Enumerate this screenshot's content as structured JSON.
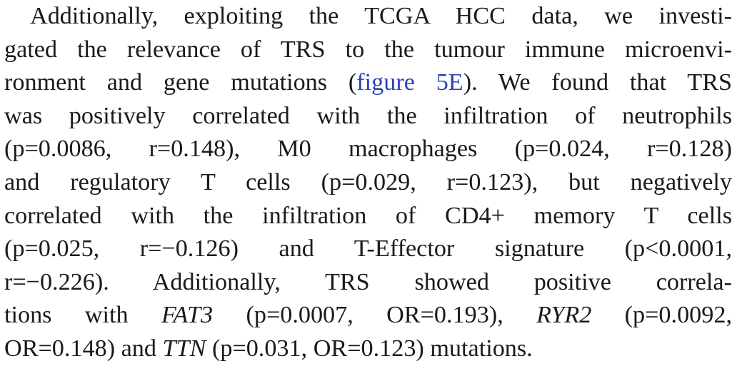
{
  "paragraph": {
    "line_01": "Additionally, exploiting the TCGA HCC data, we investi-",
    "line_02": "gated the relevance of TRS to the tumour immune microenvi-",
    "line_03_before": "ronment and gene mutations (",
    "line_03_link": "figure 5E",
    "line_03_after": "). We found that TRS",
    "line_04": "was positively correlated with the infiltration of neutrophils",
    "line_05": "(p=0.0086, r=0.148), M0 macrophages (p=0.024, r=0.128)",
    "line_06": "and regulatory T cells (p=0.029, r=0.123), but negatively",
    "line_07": "correlated with the infiltration of CD4+ memory T cells",
    "line_08": "(p=0.025, r=−0.126) and T-Effector signature (p<0.0001,",
    "line_09": "r=−0.226). Additionally, TRS showed positive correla-",
    "line_10_before": "tions with ",
    "line_10_gene1": "FAT3",
    "line_10_middle": " (p=0.0007, OR=0.193), ",
    "line_10_gene2": "RYR2",
    "line_10_after": " (p=0.0092,",
    "line_11_before": "OR=0.148) and ",
    "line_11_gene": "TTN",
    "line_11_after": " (p=0.031, OR=0.123) mutations."
  },
  "colors": {
    "text": "#1a1a1a",
    "link": "#2b44b8",
    "background": "#ffffff"
  }
}
